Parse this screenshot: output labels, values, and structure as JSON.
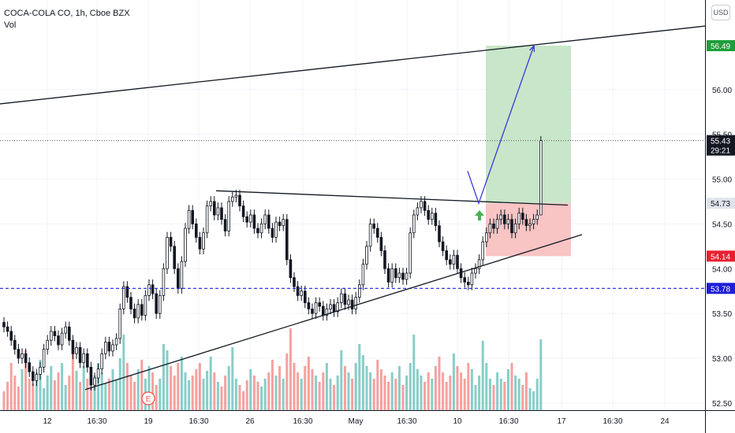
{
  "legend": {
    "title": "COCA-COLA CO, 1h, Cboe BZX",
    "volume": "Vol"
  },
  "currency": "USD",
  "earnings_marker": "E",
  "colors": {
    "up": "#26a69a",
    "down": "#ef5350",
    "candle": "#131722",
    "profit_zone": "#c8e6c9",
    "loss_zone": "#f8c4c4",
    "target_label": "#1e9e3a",
    "stop_label": "#e8202f",
    "support_label": "#1e1ed8",
    "arrow": "#3a3ad6",
    "signal_arrow": "#4caf50"
  },
  "chart_data": {
    "type": "candlestick",
    "y_axis": {
      "ticks": [
        "56.00",
        "55.50",
        "55.00",
        "54.50",
        "54.00",
        "53.50",
        "53.00",
        "52.50"
      ],
      "range": [
        52.42,
        57.0
      ]
    },
    "x_axis": {
      "ticks": [
        "12",
        "16:30",
        "19",
        "16:30",
        "26",
        "16:30",
        "May",
        "16:30",
        "10",
        "16:30",
        "17",
        "16:30",
        "24"
      ]
    },
    "price_labels": [
      {
        "value": "56.49",
        "role": "target"
      },
      {
        "value": "55.43",
        "role": "last",
        "countdown": "29:21"
      },
      {
        "value": "54.73",
        "role": "entry"
      },
      {
        "value": "54.14",
        "role": "stop"
      },
      {
        "value": "53.78",
        "role": "support"
      }
    ],
    "levels": {
      "support_dashed": 53.78,
      "last_dotted": 55.43
    },
    "trendlines": [
      {
        "name": "upper-channel",
        "from": [
          0,
          55.84
        ],
        "to": [
          895,
          56.71
        ]
      },
      {
        "name": "triangle-top",
        "from": [
          274,
          54.87
        ],
        "to": [
          720,
          54.71
        ]
      },
      {
        "name": "triangle-bottom",
        "from": [
          108,
          52.65
        ],
        "to": [
          738,
          54.38
        ]
      }
    ],
    "position": {
      "entry": 54.73,
      "target": 56.49,
      "stop": 54.14
    },
    "projection": [
      [
        593,
        55.09
      ],
      [
        607,
        54.73
      ],
      [
        677,
        56.49
      ]
    ],
    "candles": {
      "x_start": 5,
      "x_step": 4.6,
      "close": [
        53.35,
        53.3,
        53.2,
        53.1,
        53.0,
        53.05,
        52.95,
        52.85,
        52.75,
        52.82,
        52.9,
        53.1,
        53.2,
        53.3,
        53.25,
        53.15,
        53.28,
        53.35,
        53.2,
        53.05,
        53.12,
        52.95,
        53.05,
        52.9,
        52.7,
        52.78,
        52.88,
        53.05,
        53.18,
        53.08,
        53.15,
        53.22,
        53.55,
        53.8,
        53.68,
        53.55,
        53.45,
        53.6,
        53.48,
        53.7,
        53.82,
        53.72,
        53.5,
        53.7,
        54.0,
        54.35,
        54.25,
        54.0,
        53.78,
        54.08,
        54.45,
        54.65,
        54.5,
        54.35,
        54.22,
        54.4,
        54.7,
        54.75,
        54.6,
        54.68,
        54.55,
        54.42,
        54.75,
        54.8,
        54.82,
        54.7,
        54.58,
        54.52,
        54.6,
        54.45,
        54.4,
        54.5,
        54.6,
        54.45,
        54.35,
        54.52,
        54.48,
        54.55,
        54.1,
        53.9,
        53.8,
        53.7,
        53.75,
        53.62,
        53.55,
        53.5,
        53.62,
        53.58,
        53.48,
        53.55,
        53.6,
        53.52,
        53.62,
        53.72,
        53.6,
        53.65,
        53.55,
        53.68,
        53.82,
        54.05,
        54.25,
        54.5,
        54.45,
        54.35,
        54.2,
        54.0,
        53.85,
        54.0,
        53.9,
        53.95,
        53.88,
        53.95,
        54.4,
        54.6,
        54.68,
        54.75,
        54.65,
        54.55,
        54.62,
        54.48,
        54.3,
        54.2,
        54.1,
        54.05,
        54.15,
        54.0,
        53.9,
        53.85,
        53.82,
        53.95,
        54.0,
        54.1,
        54.3,
        54.4,
        54.5,
        54.45,
        54.55,
        54.6,
        54.5,
        54.55,
        54.4,
        54.5,
        54.62,
        54.55,
        54.48,
        54.5,
        54.55,
        54.6,
        55.43
      ],
      "volume": [
        0.12,
        0.18,
        0.3,
        0.22,
        0.15,
        0.26,
        0.38,
        0.2,
        0.17,
        0.24,
        0.32,
        0.14,
        0.22,
        0.28,
        0.19,
        0.24,
        0.3,
        0.16,
        0.22,
        0.36,
        0.25,
        0.18,
        0.28,
        0.2,
        0.15,
        0.22,
        0.3,
        0.24,
        0.17,
        0.2,
        0.26,
        0.19,
        0.33,
        0.48,
        0.3,
        0.22,
        0.18,
        0.26,
        0.32,
        0.2,
        0.28,
        0.24,
        0.16,
        0.2,
        0.42,
        0.38,
        0.28,
        0.22,
        0.3,
        0.34,
        0.24,
        0.19,
        0.22,
        0.26,
        0.3,
        0.2,
        0.25,
        0.34,
        0.24,
        0.18,
        0.15,
        0.22,
        0.28,
        0.4,
        0.2,
        0.16,
        0.12,
        0.19,
        0.26,
        0.22,
        0.18,
        0.15,
        0.2,
        0.24,
        0.32,
        0.22,
        0.28,
        0.2,
        0.36,
        0.52,
        0.3,
        0.24,
        0.2,
        0.28,
        0.34,
        0.26,
        0.22,
        0.18,
        0.24,
        0.3,
        0.2,
        0.16,
        0.22,
        0.38,
        0.28,
        0.24,
        0.2,
        0.3,
        0.42,
        0.35,
        0.28,
        0.24,
        0.2,
        0.32,
        0.26,
        0.22,
        0.18,
        0.24,
        0.2,
        0.28,
        0.16,
        0.22,
        0.3,
        0.48,
        0.26,
        0.22,
        0.18,
        0.24,
        0.2,
        0.28,
        0.34,
        0.24,
        0.18,
        0.22,
        0.36,
        0.28,
        0.24,
        0.2,
        0.3,
        0.26,
        0.16,
        0.22,
        0.44,
        0.3,
        0.2,
        0.16,
        0.24,
        0.2,
        0.18,
        0.26,
        0.3,
        0.22,
        0.2,
        0.16,
        0.24,
        0.14,
        0.12,
        0.2,
        0.45
      ]
    }
  }
}
